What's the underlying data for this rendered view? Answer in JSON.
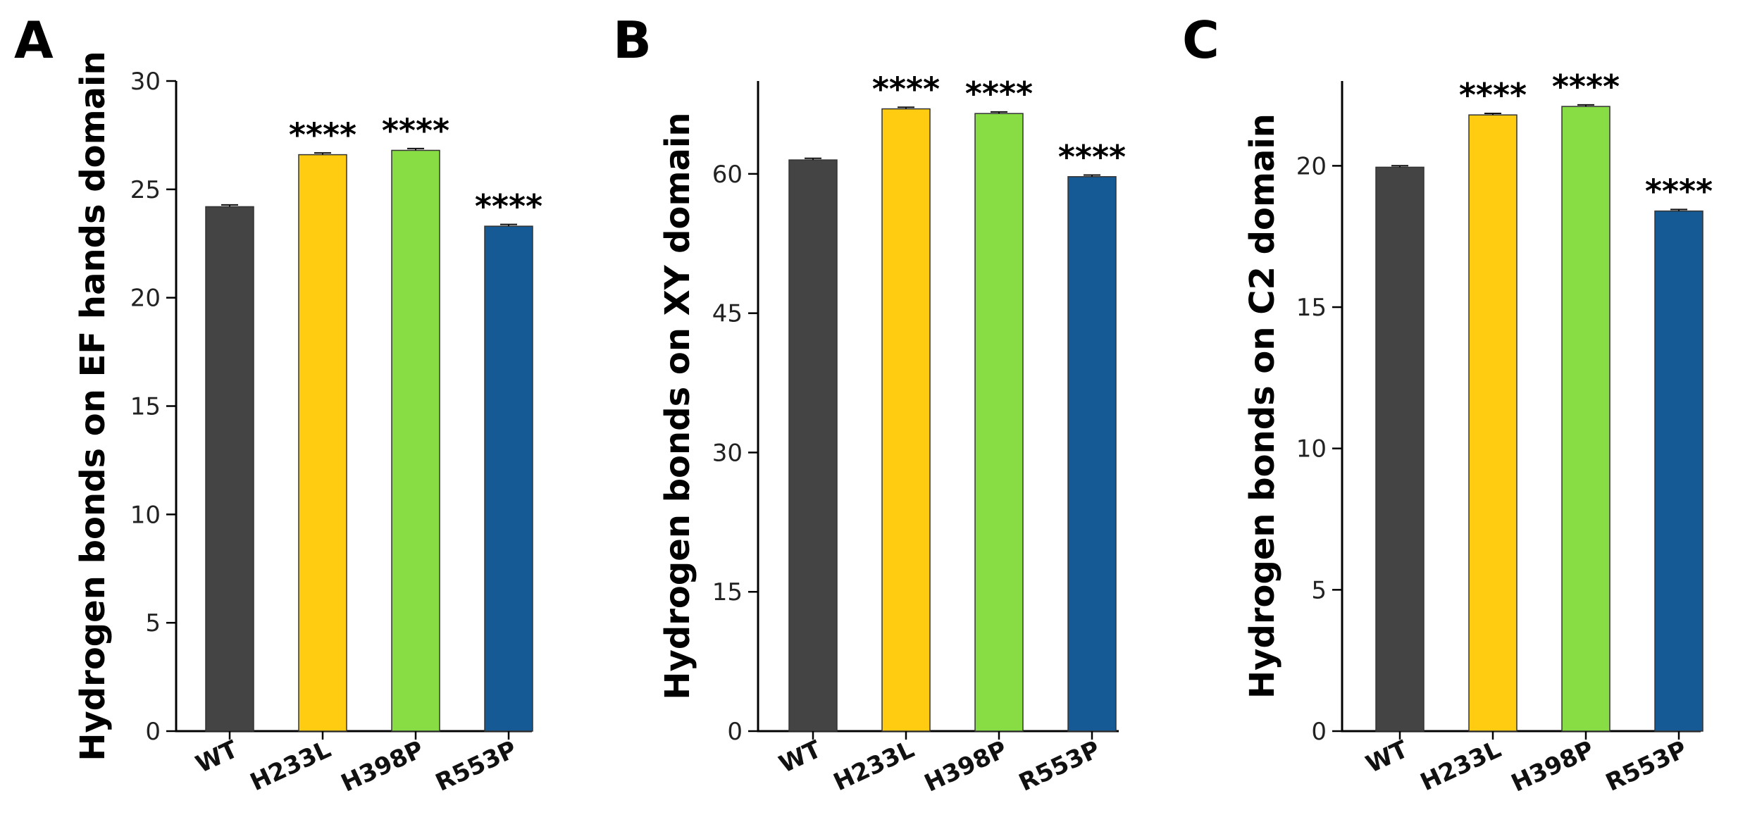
{
  "chart_data": [
    {
      "type": "bar",
      "panel_label": "A",
      "categories": [
        "WT",
        "H233L",
        "H398P",
        "R553P"
      ],
      "values": [
        24.2,
        26.6,
        26.8,
        23.3
      ],
      "errors": [
        0.05,
        0.05,
        0.05,
        0.05
      ],
      "significance": [
        "",
        "****",
        "****",
        "****"
      ],
      "colors": [
        "#444444",
        "#FFCC11",
        "#88DD44",
        "#155A94"
      ],
      "ylabel": "Hydrogen bonds on EF hands domain",
      "xlabel": "",
      "ylim": [
        0,
        30
      ],
      "yticks": [
        0,
        5,
        10,
        15,
        20,
        25,
        30
      ],
      "grid": false,
      "legend": "none"
    },
    {
      "type": "bar",
      "panel_label": "B",
      "categories": [
        "WT",
        "H233L",
        "H398P",
        "R553P"
      ],
      "values": [
        61.5,
        67.0,
        66.5,
        59.7
      ],
      "errors": [
        0.1,
        0.1,
        0.1,
        0.1
      ],
      "significance": [
        "",
        "****",
        "****",
        "****"
      ],
      "colors": [
        "#444444",
        "#FFCC11",
        "#88DD44",
        "#155A94"
      ],
      "ylabel": "Hydrogen bonds on XY domain",
      "xlabel": "",
      "ylim": [
        0,
        70
      ],
      "yticks": [
        0,
        15,
        30,
        45,
        60
      ],
      "grid": false,
      "legend": "none"
    },
    {
      "type": "bar",
      "panel_label": "C",
      "categories": [
        "WT",
        "H233L",
        "H398P",
        "R553P"
      ],
      "values": [
        19.95,
        21.8,
        22.1,
        18.4
      ],
      "errors": [
        0.03,
        0.03,
        0.03,
        0.03
      ],
      "significance": [
        "",
        "****",
        "****",
        "****"
      ],
      "colors": [
        "#444444",
        "#FFCC11",
        "#88DD44",
        "#155A94"
      ],
      "ylabel": "Hydrogen bonds on C2 domain",
      "xlabel": "",
      "ylim": [
        0,
        23
      ],
      "yticks": [
        0,
        5,
        10,
        15,
        20
      ],
      "grid": false,
      "legend": "none"
    }
  ]
}
